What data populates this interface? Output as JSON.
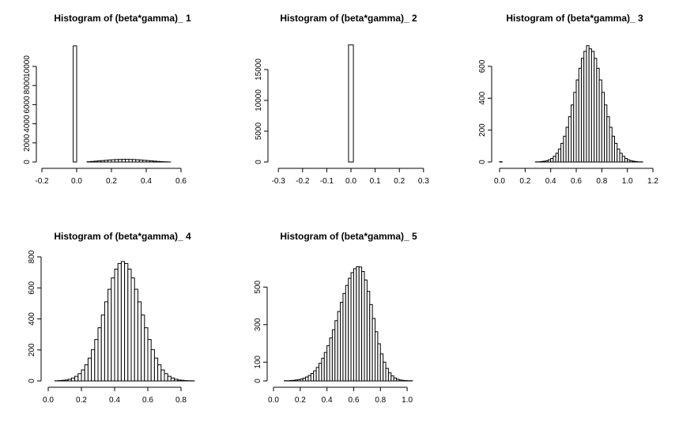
{
  "chart_data": [
    {
      "type": "histogram",
      "title": "Histogram of (beta*gamma)_ 1",
      "bins": [
        -0.16,
        -0.14,
        -0.12,
        -0.1,
        -0.08,
        -0.06,
        -0.04,
        -0.02,
        0,
        0.02,
        0.04,
        0.06,
        0.08,
        0.1,
        0.12,
        0.14,
        0.16,
        0.18,
        0.2,
        0.22,
        0.24,
        0.26,
        0.28,
        0.3,
        0.32,
        0.34,
        0.36,
        0.38,
        0.4,
        0.42,
        0.44,
        0.46,
        0.48,
        0.5,
        0.52,
        0.54,
        0.56,
        0.58,
        0.6,
        0.62,
        0.64,
        0.66,
        0.68,
        0.7
      ],
      "values": [
        0,
        0,
        0,
        0,
        0,
        0,
        0,
        12150,
        0,
        0,
        0,
        30,
        60,
        90,
        120,
        150,
        180,
        210,
        240,
        260,
        270,
        280,
        280,
        270,
        260,
        240,
        210,
        180,
        150,
        120,
        90,
        60,
        40,
        20,
        10,
        0,
        0,
        0,
        0,
        0,
        0,
        0,
        0
      ],
      "color": "#ffffff",
      "xlim": [
        -0.2,
        0.7
      ],
      "xticks": [
        -0.2,
        {
          "value": 0,
          "label": "0.0"
        },
        0.2,
        0.4,
        0.6
      ],
      "ylim": [
        0,
        12200
      ],
      "yticks": [
        0,
        2000,
        4000,
        6000,
        8000,
        10000
      ]
    },
    {
      "type": "histogram",
      "title": "Histogram of (beta*gamma)_ 2",
      "bins": [
        -0.31,
        -0.29,
        -0.27,
        -0.25,
        -0.23,
        -0.21,
        -0.19,
        -0.17,
        -0.15,
        -0.13,
        -0.11,
        -0.09,
        -0.07,
        -0.05,
        -0.03,
        -0.01,
        0.01,
        0.03,
        0.05,
        0.07,
        0.09,
        0.11,
        0.13,
        0.15,
        0.17,
        0.19,
        0.21,
        0.23,
        0.25,
        0.27,
        0.29,
        0.31,
        0.33
      ],
      "values": [
        0,
        0,
        0,
        0,
        0,
        0,
        0,
        0,
        0,
        0,
        0,
        0,
        0,
        0,
        0,
        19000,
        0,
        0,
        0,
        0,
        0,
        0,
        0,
        0,
        0,
        0,
        0,
        0,
        0,
        0,
        0,
        0
      ],
      "color": "#ffffff",
      "xlim": [
        -0.33,
        0.33
      ],
      "xticks": [
        -0.3,
        -0.2,
        -0.1,
        {
          "value": 0,
          "label": "0.0"
        },
        0.1,
        0.2,
        0.3
      ],
      "ylim": [
        0,
        19000
      ],
      "yticks": [
        0,
        5000,
        10000,
        15000
      ]
    },
    {
      "type": "histogram",
      "title": "Histogram of (beta*gamma)_ 3",
      "bins": [
        0,
        0.02,
        0.04,
        0.06,
        0.08,
        0.1,
        0.12,
        0.14,
        0.16,
        0.18,
        0.2,
        0.22,
        0.24,
        0.26,
        0.28,
        0.3,
        0.32,
        0.34,
        0.36,
        0.38,
        0.4,
        0.42,
        0.44,
        0.46,
        0.48,
        0.5,
        0.52,
        0.54,
        0.56,
        0.58,
        0.6,
        0.62,
        0.64,
        0.66,
        0.68,
        0.7,
        0.72,
        0.74,
        0.76,
        0.78,
        0.8,
        0.82,
        0.84,
        0.86,
        0.88,
        0.9,
        0.92,
        0.94,
        0.96,
        0.98,
        1,
        1.02,
        1.04,
        1.06,
        1.08,
        1.1,
        1.12,
        1.14,
        1.16
      ],
      "values": [
        2,
        0,
        0,
        0,
        0,
        0,
        0,
        0,
        0,
        0,
        0,
        0,
        0,
        0,
        1,
        1,
        3,
        5,
        8,
        14,
        22,
        36,
        55,
        81,
        117,
        162,
        218,
        284,
        358,
        437,
        515,
        588,
        650,
        694,
        730,
        710,
        694,
        650,
        588,
        515,
        437,
        358,
        284,
        218,
        162,
        117,
        81,
        55,
        36,
        22,
        14,
        8,
        5,
        3,
        1,
        1,
        0,
        0
      ],
      "color": "#ffffff",
      "xlim": [
        0,
        1.2
      ],
      "xticks": [
        {
          "value": 0,
          "label": "0.0"
        },
        0.2,
        0.4,
        0.6,
        0.8,
        {
          "value": 1,
          "label": "1.0"
        },
        1.2
      ],
      "ylim": [
        0,
        740
      ],
      "yticks": [
        0,
        200,
        400,
        600
      ]
    },
    {
      "type": "histogram",
      "title": "Histogram of (beta*gamma)_ 4",
      "bins": [
        0,
        0.02,
        0.04,
        0.06,
        0.08,
        0.1,
        0.12,
        0.14,
        0.16,
        0.18,
        0.2,
        0.22,
        0.24,
        0.26,
        0.28,
        0.3,
        0.32,
        0.34,
        0.36,
        0.38,
        0.4,
        0.42,
        0.44,
        0.46,
        0.48,
        0.5,
        0.52,
        0.54,
        0.56,
        0.58,
        0.6,
        0.62,
        0.64,
        0.66,
        0.68,
        0.7,
        0.72,
        0.74,
        0.76,
        0.78,
        0.8,
        0.82,
        0.84,
        0.86,
        0.88,
        0.9,
        0.92
      ],
      "values": [
        0,
        0,
        1,
        2,
        4,
        6,
        11,
        19,
        30,
        47,
        71,
        104,
        147,
        202,
        267,
        343,
        425,
        510,
        591,
        664,
        721,
        757,
        770,
        757,
        721,
        664,
        591,
        510,
        425,
        343,
        267,
        202,
        147,
        104,
        71,
        47,
        30,
        19,
        11,
        6,
        4,
        2,
        1,
        1,
        0,
        0
      ],
      "color": "#ffffff",
      "xlim": [
        0,
        0.9
      ],
      "xticks": [
        {
          "value": 0,
          "label": "0.0"
        },
        0.2,
        0.4,
        0.6,
        0.8
      ],
      "ylim": [
        0,
        800
      ],
      "yticks": [
        0,
        200,
        400,
        600,
        800
      ]
    },
    {
      "type": "histogram",
      "title": "Histogram of (beta*gamma)_ 5",
      "bins": [
        0,
        0.02,
        0.04,
        0.06,
        0.08,
        0.1,
        0.12,
        0.14,
        0.16,
        0.18,
        0.2,
        0.22,
        0.24,
        0.26,
        0.28,
        0.3,
        0.32,
        0.34,
        0.36,
        0.38,
        0.4,
        0.42,
        0.44,
        0.46,
        0.48,
        0.5,
        0.52,
        0.54,
        0.56,
        0.58,
        0.6,
        0.62,
        0.64,
        0.66,
        0.68,
        0.7,
        0.72,
        0.74,
        0.76,
        0.78,
        0.8,
        0.82,
        0.84,
        0.86,
        0.88,
        0.9,
        0.92,
        0.94,
        0.96,
        0.98,
        1,
        1.02,
        1.04,
        1.06,
        1.08,
        1.1
      ],
      "values": [
        0,
        0,
        0,
        0,
        1,
        1,
        2,
        3,
        5,
        7,
        10,
        15,
        21,
        29,
        40,
        54,
        72,
        94,
        121,
        152,
        188,
        229,
        273,
        321,
        370,
        419,
        466,
        509,
        547,
        577,
        598,
        609,
        607,
        583,
        538,
        477,
        407,
        333,
        262,
        198,
        144,
        100,
        67,
        43,
        27,
        16,
        9,
        5,
        3,
        2,
        1,
        1,
        0,
        0,
        0
      ],
      "color": "#ffffff",
      "xlim": [
        0,
        1.1
      ],
      "xticks": [
        {
          "value": 0,
          "label": "0.0"
        },
        0.2,
        0.4,
        0.6,
        0.8,
        {
          "value": 1,
          "label": "1.0"
        }
      ],
      "ylim": [
        0,
        640
      ],
      "yticks": [
        0,
        100,
        300,
        500
      ]
    }
  ]
}
